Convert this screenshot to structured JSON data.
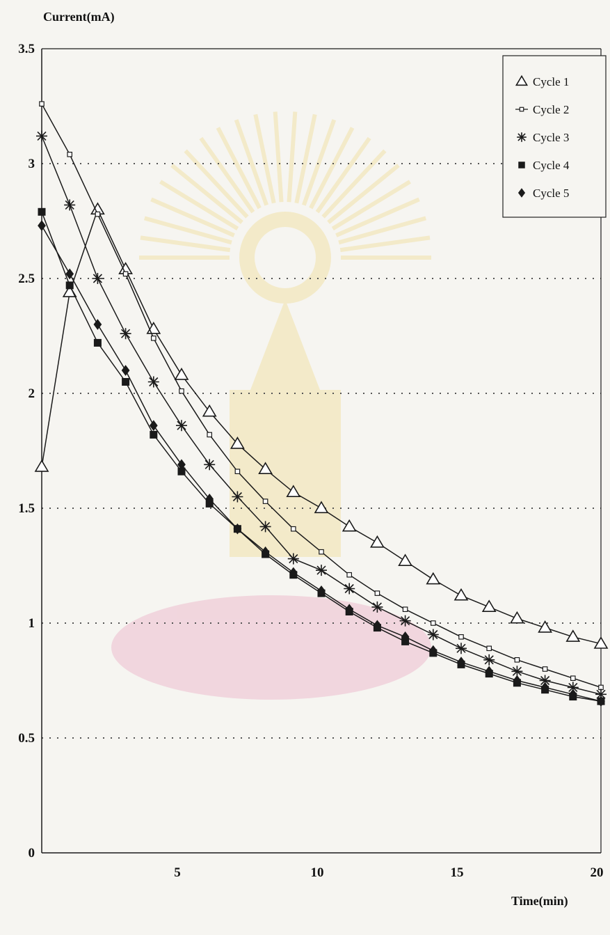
{
  "chart_data": {
    "type": "line",
    "ylabel": "Current(mA)",
    "xlabel": "Time(min)",
    "xlim": [
      0,
      20
    ],
    "ylim": [
      0,
      3.5
    ],
    "x_ticks": [
      "5",
      "10",
      "15",
      "20"
    ],
    "x_tick_values": [
      5,
      10,
      15,
      20
    ],
    "y_ticks": [
      "0",
      "0.5",
      "1",
      "1.5",
      "2",
      "2.5",
      "3",
      "3.5"
    ],
    "y_tick_values": [
      0,
      0.5,
      1,
      1.5,
      2,
      2.5,
      3,
      3.5
    ],
    "grid": "horizontal dotted",
    "legend_position": "top-right",
    "x": [
      0,
      1,
      2,
      3,
      4,
      5,
      6,
      7,
      8,
      9,
      10,
      11,
      12,
      13,
      14,
      15,
      16,
      17,
      18,
      19,
      20
    ],
    "series": [
      {
        "name": "Cycle 1",
        "marker": "triangle-open",
        "values": [
          1.68,
          2.44,
          2.8,
          2.54,
          2.28,
          2.08,
          1.92,
          1.78,
          1.67,
          1.57,
          1.5,
          1.42,
          1.35,
          1.27,
          1.19,
          1.12,
          1.07,
          1.02,
          0.98,
          0.94,
          0.91
        ]
      },
      {
        "name": "Cycle 2",
        "marker": "square-small-open",
        "values": [
          3.26,
          3.04,
          2.78,
          2.52,
          2.24,
          2.01,
          1.82,
          1.66,
          1.53,
          1.41,
          1.31,
          1.21,
          1.13,
          1.06,
          1.0,
          0.94,
          0.89,
          0.84,
          0.8,
          0.76,
          0.72
        ]
      },
      {
        "name": "Cycle 3",
        "marker": "asterisk",
        "values": [
          3.12,
          2.82,
          2.5,
          2.26,
          2.05,
          1.86,
          1.69,
          1.55,
          1.42,
          1.28,
          1.23,
          1.15,
          1.07,
          1.01,
          0.95,
          0.89,
          0.84,
          0.79,
          0.75,
          0.72,
          0.69
        ]
      },
      {
        "name": "Cycle 4",
        "marker": "square-filled",
        "values": [
          2.79,
          2.47,
          2.22,
          2.05,
          1.82,
          1.66,
          1.52,
          1.41,
          1.3,
          1.21,
          1.13,
          1.05,
          0.98,
          0.92,
          0.87,
          0.82,
          0.78,
          0.74,
          0.71,
          0.68,
          0.66
        ]
      },
      {
        "name": "Cycle 5",
        "marker": "diamond-filled",
        "values": [
          2.73,
          2.52,
          2.3,
          2.1,
          1.86,
          1.69,
          1.54,
          1.41,
          1.31,
          1.22,
          1.14,
          1.06,
          0.99,
          0.94,
          0.88,
          0.83,
          0.79,
          0.75,
          0.72,
          0.69,
          0.66
        ]
      }
    ],
    "colors": {
      "line": "#1a1a1a",
      "grid": "#555555",
      "background": "#f6f5f1",
      "watermark": "#e8b400"
    }
  }
}
